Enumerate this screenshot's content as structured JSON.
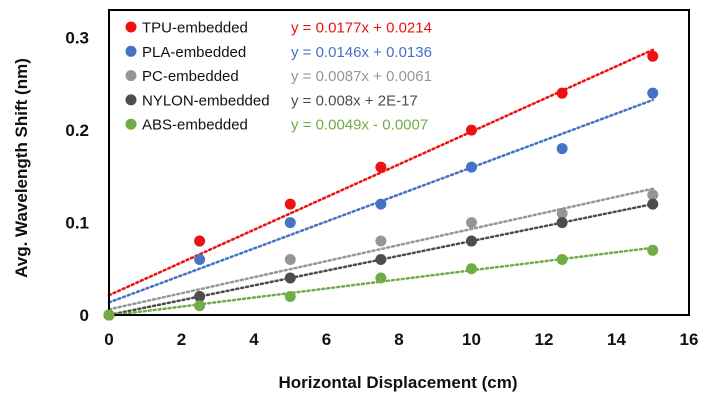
{
  "chart_data": {
    "type": "scatter",
    "xlabel": "Horizontal Displacement (cm)",
    "ylabel": "Avg. Wavelength Shift (nm)",
    "xlim": [
      0,
      16
    ],
    "ylim": [
      0,
      0.33
    ],
    "x_ticks": [
      0,
      2,
      4,
      6,
      8,
      10,
      12,
      14,
      16
    ],
    "x_tick_labels": [
      "0",
      "2",
      "4",
      "6",
      "8",
      "10",
      "12",
      "14",
      "16"
    ],
    "y_ticks": [
      0,
      0.1,
      0.2,
      0.3
    ],
    "y_tick_labels": [
      "0",
      "0.1",
      "0.2",
      "0.3"
    ],
    "grid": false,
    "legend_position": "top-left",
    "series": [
      {
        "name": "TPU-embedded",
        "color": "#ee1111",
        "trendline": {
          "slope": 0.0177,
          "intercept": 0.0214,
          "label": "y = 0.0177x + 0.0214"
        },
        "points": [
          [
            0,
            0
          ],
          [
            2.5,
            0.08
          ],
          [
            5,
            0.12
          ],
          [
            7.5,
            0.16
          ],
          [
            10,
            0.2
          ],
          [
            12.5,
            0.24
          ],
          [
            15,
            0.28
          ]
        ]
      },
      {
        "name": "PLA-embedded",
        "color": "#4472c4",
        "trendline": {
          "slope": 0.0146,
          "intercept": 0.0136,
          "label": "y = 0.0146x + 0.0136"
        },
        "points": [
          [
            0,
            0
          ],
          [
            2.5,
            0.06
          ],
          [
            5,
            0.1
          ],
          [
            7.5,
            0.12
          ],
          [
            10,
            0.16
          ],
          [
            12.5,
            0.18
          ],
          [
            15,
            0.24
          ]
        ]
      },
      {
        "name": "PC-embedded",
        "color": "#969696",
        "trendline": {
          "slope": 0.0087,
          "intercept": 0.0061,
          "label": "y = 0.0087x + 0.0061"
        },
        "points": [
          [
            0,
            0
          ],
          [
            2.5,
            0.02
          ],
          [
            5,
            0.06
          ],
          [
            7.5,
            0.08
          ],
          [
            10,
            0.1
          ],
          [
            12.5,
            0.11
          ],
          [
            15,
            0.13
          ]
        ]
      },
      {
        "name": "NYLON-embedded",
        "color": "#4d4d4d",
        "trendline": {
          "slope": 0.008,
          "intercept": 0,
          "label": "y = 0.008x + 2E-17"
        },
        "points": [
          [
            0,
            0
          ],
          [
            2.5,
            0.02
          ],
          [
            5,
            0.04
          ],
          [
            7.5,
            0.06
          ],
          [
            10,
            0.08
          ],
          [
            12.5,
            0.1
          ],
          [
            15,
            0.12
          ]
        ]
      },
      {
        "name": "ABS-embedded",
        "color": "#70ad47",
        "trendline": {
          "slope": 0.0049,
          "intercept": -0.0007,
          "label": "y = 0.0049x - 0.0007"
        },
        "points": [
          [
            0,
            0
          ],
          [
            2.5,
            0.01
          ],
          [
            5,
            0.02
          ],
          [
            7.5,
            0.04
          ],
          [
            10,
            0.05
          ],
          [
            12.5,
            0.06
          ],
          [
            15,
            0.07
          ]
        ]
      }
    ]
  }
}
